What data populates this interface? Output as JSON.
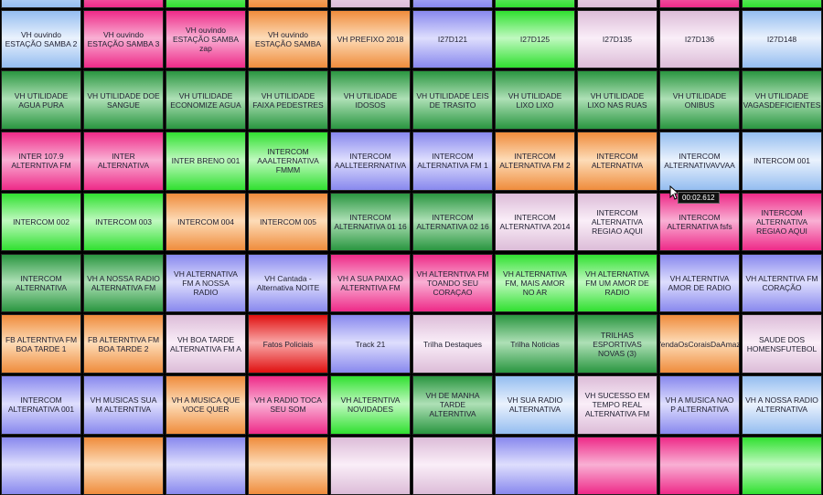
{
  "rows": [
    {
      "cells": [
        {
          "color": "blue"
        },
        {
          "color": "magenta"
        },
        {
          "color": "green"
        },
        {
          "color": "orange"
        },
        {
          "color": "lightpink"
        },
        {
          "color": "periwinkle"
        },
        {
          "color": "green"
        },
        {
          "color": "lightpink"
        },
        {
          "color": "magenta"
        },
        {
          "color": "green"
        }
      ]
    },
    {
      "cells": [
        {
          "label": "VH ouvindo ESTAÇÃO SAMBA 2",
          "color": "blue"
        },
        {
          "label": "VH ouvindo ESTAÇÃO SAMBA 3",
          "color": "magenta"
        },
        {
          "label": "VH ouvindo ESTAÇÃO SAMBA zap",
          "color": "magenta"
        },
        {
          "label": "VH ouvindo ESTAÇÃO SAMBA",
          "color": "orange"
        },
        {
          "label": "VH PREFIXO 2018",
          "color": "orange"
        },
        {
          "label": "I27D121",
          "color": "periwinkle"
        },
        {
          "label": "I27D125",
          "color": "green"
        },
        {
          "label": "I27D135",
          "color": "lightpink"
        },
        {
          "label": "I27D136",
          "color": "lightpink"
        },
        {
          "label": "I27D148",
          "color": "blue"
        }
      ]
    },
    {
      "cells": [
        {
          "label": "VH UTILIDADE AGUA PURA",
          "color": "darkgreen"
        },
        {
          "label": "VH UTILIDADE DOE SANGUE",
          "color": "darkgreen"
        },
        {
          "label": "VH UTILIDADE ECONOMIZE AGUA",
          "color": "darkgreen"
        },
        {
          "label": "VH UTILIDADE FAIXA PEDESTRES",
          "color": "darkgreen"
        },
        {
          "label": "VH UTILIDADE IDOSOS",
          "color": "darkgreen"
        },
        {
          "label": "VH UTILIDADE LEIS DE TRASITO",
          "color": "darkgreen"
        },
        {
          "label": "VH UTILIDADE LIXO LIXO",
          "color": "darkgreen"
        },
        {
          "label": "VH UTILIDADE LIXO NAS RUAS",
          "color": "darkgreen"
        },
        {
          "label": "VH UTILIDADE ONIBUS",
          "color": "darkgreen"
        },
        {
          "label": "VH UTILIDADE VAGASDEFICIENTES",
          "color": "darkgreen"
        }
      ]
    },
    {
      "cells": [
        {
          "label": "INTER 107.9 ALTERNTIVA FM",
          "color": "magenta"
        },
        {
          "label": "INTER ALTERNATIVA",
          "color": "magenta"
        },
        {
          "label": "INTER BRENO 001",
          "color": "green"
        },
        {
          "label": "INTERCOM AAALTERNATIVA FMMM",
          "color": "green"
        },
        {
          "label": "INTERCOM AALLTEERRNATIVA",
          "color": "periwinkle"
        },
        {
          "label": "INTERCOM ALTERNATIVA FM 1",
          "color": "periwinkle"
        },
        {
          "label": "INTERCOM ALTERNATIVA FM 2",
          "color": "orange"
        },
        {
          "label": "INTERCOM ALTERNATIVA",
          "color": "orange"
        },
        {
          "label": "INTERCOM ALTERNATIVAVVAA",
          "color": "blue"
        },
        {
          "label": "INTERCOM 001",
          "color": "blue"
        }
      ]
    },
    {
      "cells": [
        {
          "label": "INTERCOM 002",
          "color": "green"
        },
        {
          "label": "INTERCOM 003",
          "color": "green"
        },
        {
          "label": "INTERCOM 004",
          "color": "orange"
        },
        {
          "label": "INTERCOM 005",
          "color": "orange"
        },
        {
          "label": "INTERCOM ALTERNATIVA 01 16",
          "color": "darkgreen"
        },
        {
          "label": "INTERCOM ALTERNATIVA 02 16",
          "color": "darkgreen"
        },
        {
          "label": "INTERCOM ALTERNATIVA 2014",
          "color": "lightpink"
        },
        {
          "label": "INTERCOM ALTERNATIVA REGIAO AQUI",
          "color": "lightpink"
        },
        {
          "label": "INTERCOM ALTERNATIVA fsfs",
          "color": "magenta"
        },
        {
          "label": "INTERCOM ALTERNATIVA REGIAO AQUI",
          "color": "magenta"
        }
      ]
    },
    {
      "cells": [
        {
          "label": "INTERCOM ALTERNATIVA",
          "color": "darkgreen"
        },
        {
          "label": "VH A NOSSA RADIO ALTERNATIVA FM",
          "color": "darkgreen"
        },
        {
          "label": "VH ALTERNATIVA FM A NOSSA RADIO",
          "color": "periwinkle"
        },
        {
          "label": "VH  Cantada - Alternativa NOITE",
          "color": "periwinkle"
        },
        {
          "label": "VH A SUA PAIXAO ALTERNTIVA FM",
          "color": "magenta"
        },
        {
          "label": "VH ALTERNTIVA FM TOANDO SEU CORAÇAO",
          "color": "magenta"
        },
        {
          "label": "VH ALTERNATIVA FM, MAIS AMOR NO AR",
          "color": "green"
        },
        {
          "label": "VH ALTERNATIVA FM UM AMOR DE RADIO",
          "color": "green"
        },
        {
          "label": "VH ALTERNTIVA AMOR DE RADIO",
          "color": "periwinkle"
        },
        {
          "label": "VH ALTERNTIVA FM CORAÇÃO",
          "color": "periwinkle"
        }
      ]
    },
    {
      "cells": [
        {
          "label": "FB ALTERNTIVA FM BOA TARDE 1",
          "color": "orange"
        },
        {
          "label": "FB ALTERNTIVA FM BOA TARDE 2",
          "color": "orange"
        },
        {
          "label": "VH BOA TARDE ALTERNATIVA FM A",
          "color": "lightpink"
        },
        {
          "label": "Fatos Policiais",
          "color": "red"
        },
        {
          "label": "Track 21",
          "color": "periwinkle"
        },
        {
          "label": "Trilha Destaques",
          "color": "lightpink"
        },
        {
          "label": "Trilha Noticias",
          "color": "darkgreen"
        },
        {
          "label": "TRILHAS ESPORTIVAS NOVAS (3)",
          "color": "darkgreen"
        },
        {
          "label": "efendaOsCoraisDaAmazô",
          "color": "orange"
        },
        {
          "label": "SAUDE DOS HOMENSFUTEBOL",
          "color": "lightpink"
        }
      ]
    },
    {
      "cells": [
        {
          "label": "INTERCOM ALTERNATIVA 001",
          "color": "periwinkle"
        },
        {
          "label": "VH   MUSICAS SUA M ALTERNTIVA",
          "color": "periwinkle"
        },
        {
          "label": "VH  A MUSICA QUE VOCE QUER",
          "color": "orange"
        },
        {
          "label": "VH  A RADIO TOCA SEU SOM",
          "color": "magenta"
        },
        {
          "label": "VH  ALTERNTIVA NOVIDADES",
          "color": "green"
        },
        {
          "label": "VH  DE MANHA TARDE ALTERNTIVA",
          "color": "darkgreen"
        },
        {
          "label": "VH  SUA RADIO ALTERNATIVA",
          "color": "blue"
        },
        {
          "label": "VH  SUCESSO EM TEMPO REAL ALTERNATIVA FM",
          "color": "lightpink"
        },
        {
          "label": "VH A MUSICA NAO P ALTERNATIVA",
          "color": "periwinkle"
        },
        {
          "label": "VH A NOSSA RADIO ALTERNATIVA",
          "color": "blue"
        }
      ]
    },
    {
      "cells": [
        {
          "color": "periwinkle"
        },
        {
          "color": "orange"
        },
        {
          "color": "periwinkle"
        },
        {
          "color": "orange"
        },
        {
          "color": "lightpink"
        },
        {
          "color": "lightpink"
        },
        {
          "color": "periwinkle"
        },
        {
          "color": "magenta"
        },
        {
          "color": "magenta"
        },
        {
          "color": "green"
        }
      ]
    }
  ],
  "tooltip": "00:02.612"
}
